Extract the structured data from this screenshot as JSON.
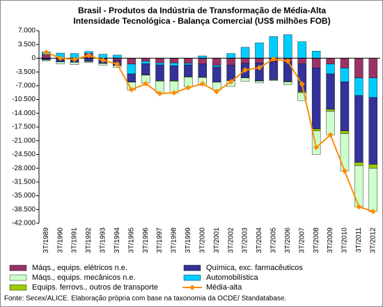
{
  "chart_data": {
    "type": "bar",
    "stacked": true,
    "title": [
      "Brasil - Produtos da Indústria de Transformação de Média-Alta",
      "Intensidade Tecnológica - Balança Comercial (US$ milhões FOB)"
    ],
    "source": "Fonte: Secex/ALICE. Elaboração própria com base na taxonomia da OCDE/ Standatabase.",
    "categories": [
      "3T/1989",
      "3T/1990",
      "3T/1991",
      "3T/1992",
      "3T/1993",
      "3T/1994",
      "3T/1995",
      "3T/1996",
      "3T/1997",
      "3T/1998",
      "3T/1999",
      "3T/2000",
      "3T/2001",
      "3T/2002",
      "3T/2003",
      "3T/2004",
      "3T/2005",
      "3T/2006",
      "3T/2007",
      "3T/2008",
      "3T/2009",
      "3T/2010",
      "3T/2011",
      "3T/2012"
    ],
    "series": [
      {
        "name": "Máqs., equips. elétricos n.e.",
        "color": "#993366",
        "values": [
          900,
          -300,
          -200,
          1200,
          -400,
          -600,
          -1500,
          -800,
          -1200,
          -1200,
          -1300,
          -1500,
          -1800,
          -1800,
          -1300,
          -1200,
          -900,
          -900,
          -1500,
          -2500,
          -1500,
          -2500,
          -5000,
          -5000
        ]
      },
      {
        "name": "Automobilística",
        "color": "#00ccff",
        "values": [
          700,
          1300,
          1200,
          500,
          1000,
          800,
          -2500,
          -600,
          -500,
          -700,
          -400,
          600,
          -400,
          1200,
          2800,
          3900,
          5500,
          6000,
          4200,
          1800,
          -2500,
          -3500,
          -4500,
          -5000
        ]
      },
      {
        "name": "Química, exc. farmacêuticos",
        "color": "#333399",
        "values": [
          -400,
          -600,
          -800,
          -800,
          -900,
          -1200,
          -2000,
          -2800,
          -4000,
          -3800,
          -3000,
          -3300,
          -3800,
          -3800,
          -3600,
          -4500,
          -4500,
          -5000,
          -7000,
          -15500,
          -9000,
          -12500,
          -17000,
          -17000
        ]
      },
      {
        "name": "Equips. ferrovs., outros de transporte",
        "color": "#99cc00",
        "values": [
          -50,
          -50,
          -50,
          -50,
          -50,
          -50,
          -100,
          -100,
          -150,
          -150,
          -100,
          -100,
          -100,
          -100,
          -100,
          -100,
          -100,
          -150,
          -300,
          -500,
          -500,
          -700,
          -800,
          -1000
        ]
      },
      {
        "name": "Máqs., equips. mecânicos n.e.",
        "color": "#ccffcc",
        "values": [
          -200,
          -500,
          -600,
          -300,
          -400,
          -500,
          -2000,
          -2000,
          -3000,
          -3000,
          -2500,
          -2000,
          -2000,
          -1500,
          -900,
          -500,
          -200,
          -700,
          -2000,
          -6000,
          -6000,
          -9500,
          -10500,
          -11000
        ]
      },
      {
        "name": "Média-alta",
        "color": "#ff8c00",
        "type": "line",
        "values": [
          1500,
          0,
          -300,
          700,
          -500,
          -1500,
          -8000,
          -6500,
          -9000,
          -8800,
          -7500,
          -6500,
          -8500,
          -6000,
          -3000,
          -2400,
          -200,
          -750,
          -6600,
          -22700,
          -19500,
          -28700,
          -37800,
          -39000
        ]
      }
    ],
    "ylim": [
      -42000,
      7000
    ],
    "yticks": [
      {
        "value": 7000,
        "label": "7.000"
      },
      {
        "value": 3500,
        "label": "3.500"
      },
      0,
      {
        "value": -3500,
        "label": "-3.500"
      },
      {
        "value": -7000,
        "label": "-7.000"
      },
      {
        "value": -10500,
        "label": "-10.500"
      },
      {
        "value": -14000,
        "label": "-14.000"
      },
      {
        "value": -17500,
        "label": "-17.500"
      },
      {
        "value": -21000,
        "label": "-21.000"
      },
      {
        "value": -24500,
        "label": "-24.500"
      },
      {
        "value": -28000,
        "label": "-28.000"
      },
      {
        "value": -31500,
        "label": "-31.500"
      },
      {
        "value": -35000,
        "label": "-35.000"
      },
      {
        "value": -38500,
        "label": "-38.500"
      },
      {
        "value": -42000,
        "label": "-42.000"
      }
    ],
    "grid": false
  }
}
